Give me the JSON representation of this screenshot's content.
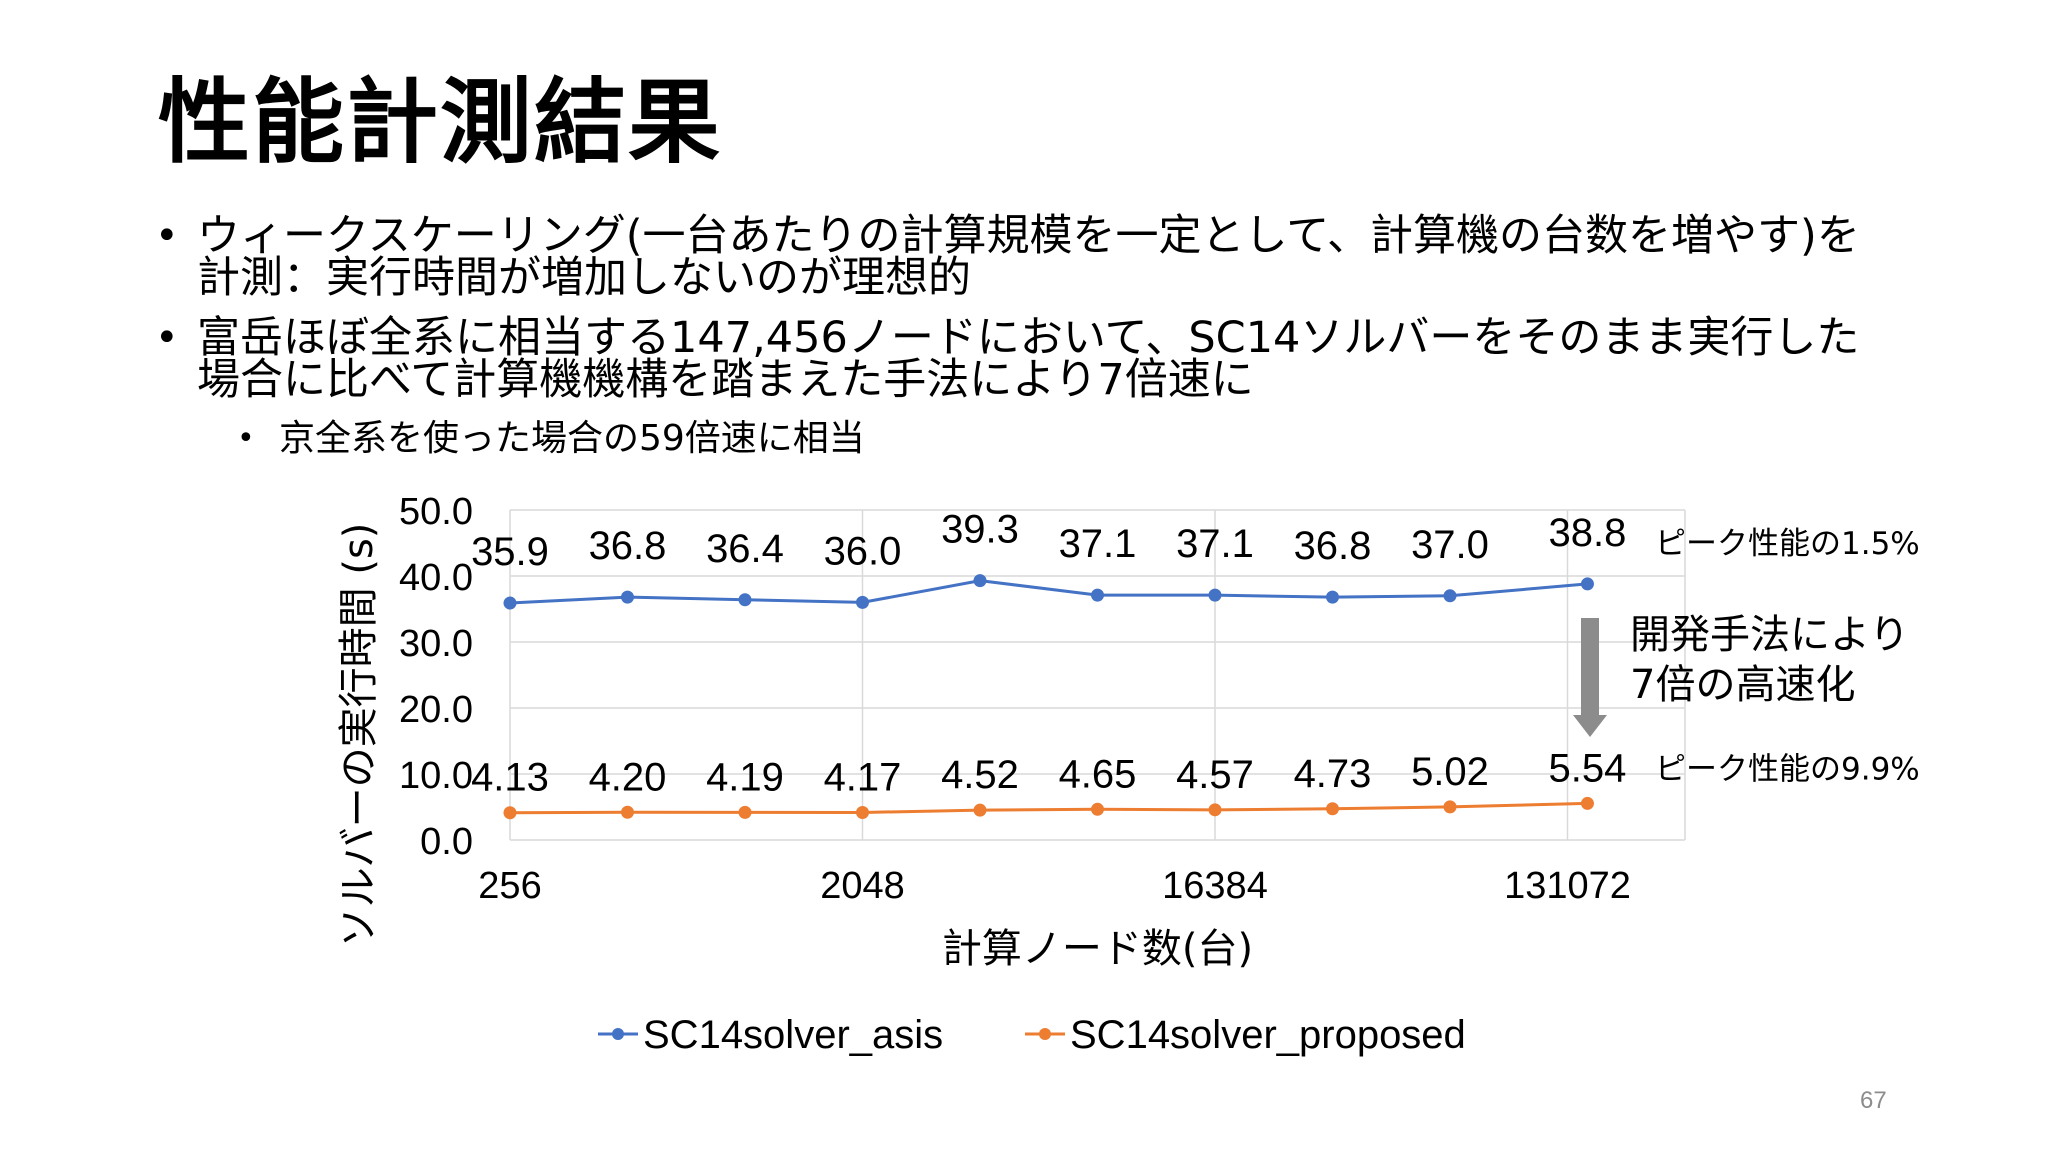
{
  "slide": {
    "title": "性能計測結果",
    "bullets": [
      {
        "lines": [
          "ウィークスケーリング(一台あたりの計算規模を一定として、計算機の台数を増やす)を",
          "計測：実行時間が増加しないのが理想的"
        ]
      },
      {
        "lines": [
          "富岳ほぼ全系に相当する147,456ノードにおいて、SC14ソルバーをそのまま実行した",
          "場合に比べて計算機機構を踏まえた手法により7倍速に"
        ]
      }
    ],
    "sub_bullet": "京全系を使った場合の59倍速に相当",
    "page_number": "67"
  },
  "chart_data": {
    "type": "line",
    "x_scale": "log2",
    "x": [
      256,
      512,
      1024,
      2048,
      4096,
      8192,
      16384,
      32768,
      65536,
      147456
    ],
    "xticks": [
      256,
      2048,
      16384,
      131072
    ],
    "xtick_labels": [
      "256",
      "2048",
      "16384",
      "131072"
    ],
    "xlim": [
      256,
      262144
    ],
    "xlabel": "計算ノード数(台)",
    "ylabel": "ソルバーの実行時間 (s)",
    "ylim": [
      0,
      50
    ],
    "yticks": [
      "0.0",
      "10.0",
      "20.0",
      "30.0",
      "40.0",
      "50.0"
    ],
    "grid": true,
    "legend_position": "bottom",
    "series": [
      {
        "name": "SC14solver_asis",
        "color": "#4472C4",
        "values": [
          35.9,
          36.8,
          36.4,
          36.0,
          39.3,
          37.1,
          37.1,
          36.8,
          37.0,
          38.8
        ],
        "labels": [
          "35.9",
          "36.8",
          "36.4",
          "36.0",
          "39.3",
          "37.1",
          "37.1",
          "36.8",
          "37.0",
          "38.8"
        ]
      },
      {
        "name": "SC14solver_proposed",
        "color": "#ED7D31",
        "values": [
          4.13,
          4.2,
          4.19,
          4.17,
          4.52,
          4.65,
          4.57,
          4.73,
          5.02,
          5.54
        ],
        "labels": [
          "4.13",
          "4.20",
          "4.19",
          "4.17",
          "4.52",
          "4.65",
          "4.57",
          "4.73",
          "5.02",
          "5.54"
        ]
      }
    ],
    "annotations": {
      "asis_peak": "ピーク性能の1.5%",
      "proposed_peak": "ピーク性能の9.9%",
      "speedup_line1": "開発手法により",
      "speedup_line2": "7倍の高速化",
      "arrow_color": "#8c8c8c"
    }
  }
}
